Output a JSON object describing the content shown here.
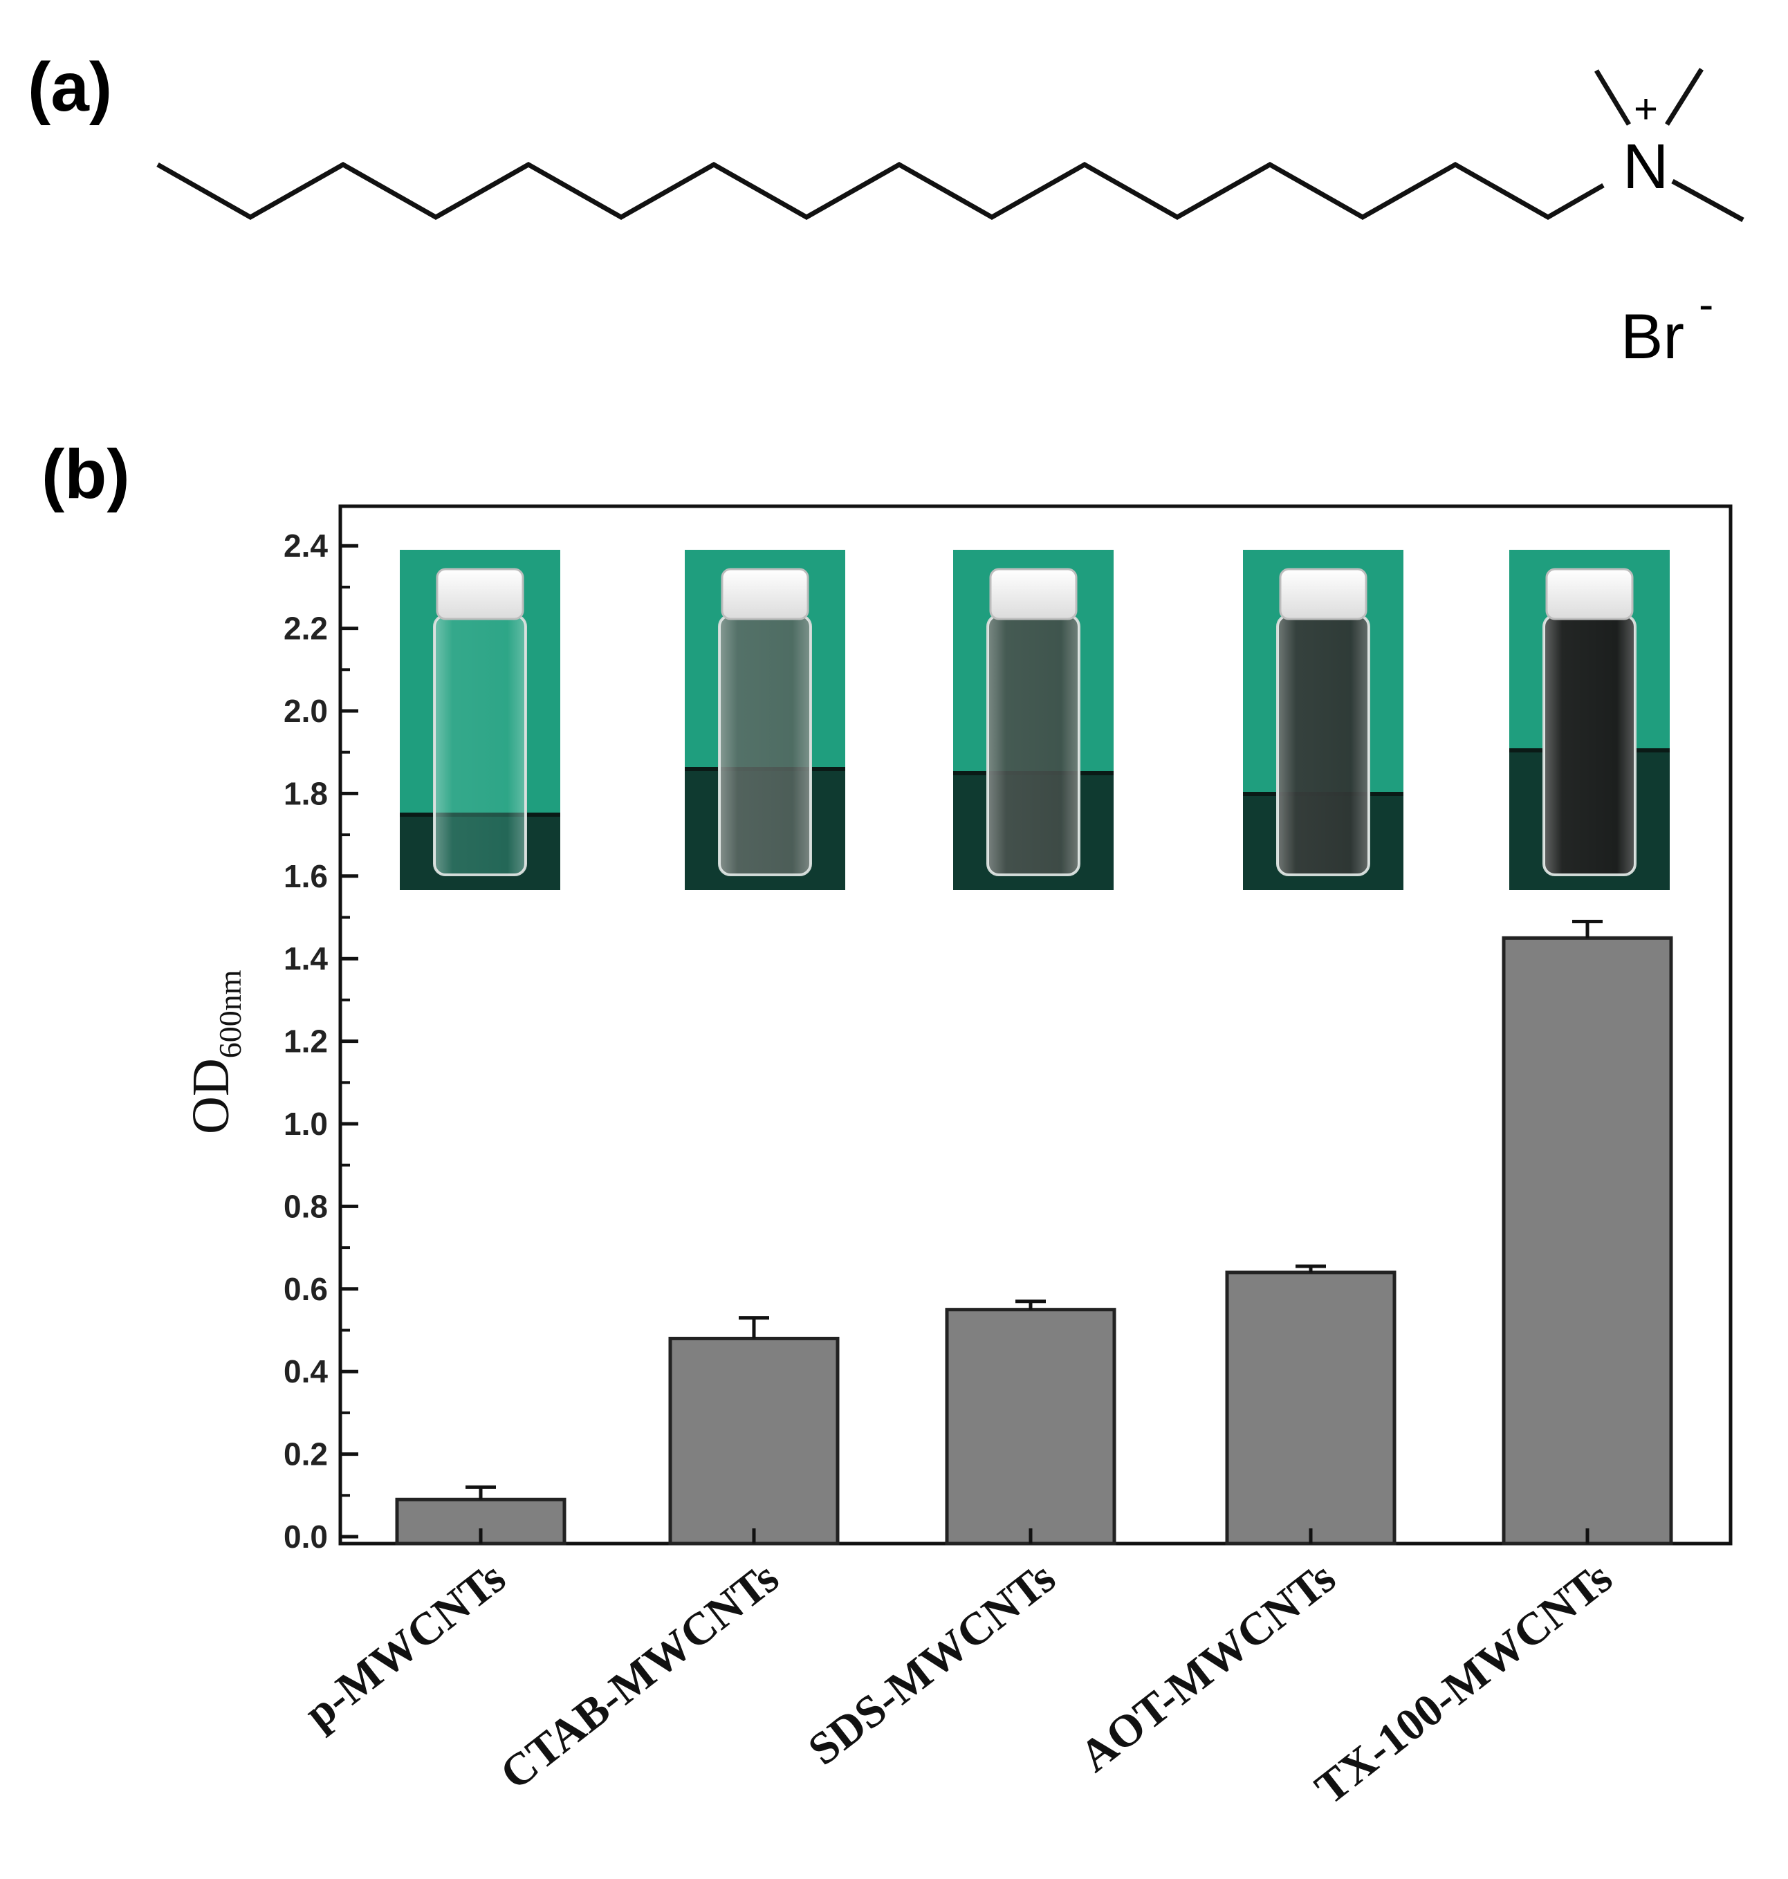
{
  "panel_a": {
    "label": "(a)",
    "cation_symbol": "N",
    "cation_charge": "+",
    "anion_symbol": "Br",
    "anion_charge": "-"
  },
  "panel_b": {
    "label": "(b)"
  },
  "chart_data": {
    "type": "bar",
    "categories": [
      "p-MWCNTs",
      "CTAB-MWCNTs",
      "SDS-MWCNTs",
      "AOT-MWCNTs",
      "TX-100-MWCNTs"
    ],
    "values": [
      0.09,
      0.48,
      0.55,
      0.64,
      1.45
    ],
    "errors": [
      0.03,
      0.05,
      0.02,
      0.015,
      0.04
    ],
    "ylabel": "OD",
    "ylabel_subscript": "600nm",
    "ylim": [
      0.0,
      2.5
    ],
    "yticks": [
      "0.0",
      "0.2",
      "0.4",
      "0.6",
      "0.8",
      "1.0",
      "1.2",
      "1.4",
      "1.6",
      "1.8",
      "2.0",
      "2.2",
      "2.4"
    ],
    "grid": false,
    "bar_color": "#808080",
    "inset_background_color": "#1f9e7e",
    "inset_liquid_levels": [
      "clear",
      "light-grey",
      "grey",
      "dark-grey",
      "black"
    ]
  }
}
